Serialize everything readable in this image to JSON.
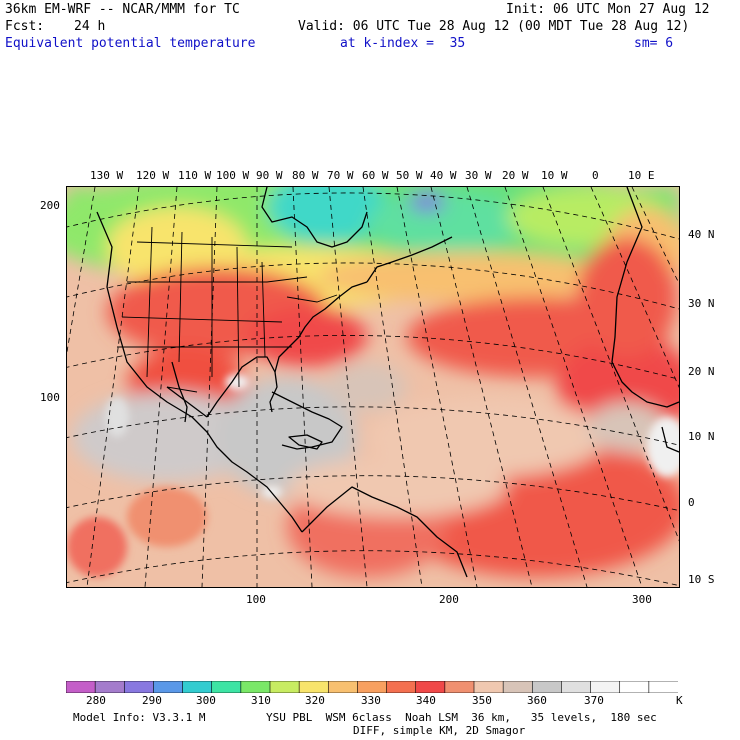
{
  "header": {
    "model": "36km EM-WRF -- NCAR/MMM for TC",
    "init": "Init: 06 UTC Mon 27 Aug 12",
    "fcst_label": "Fcst:",
    "fcst_value": "24 h",
    "valid": "Valid: 06 UTC Tue 28 Aug 12 (00 MDT Tue 28 Aug 12)",
    "field": "Equivalent potential temperature",
    "kindex": "at k-index =  35",
    "smooth": "sm= 6"
  },
  "map": {
    "lon_labels": [
      "130 W",
      "120 W",
      "110 W",
      "100 W",
      "90 W",
      "80 W",
      "70 W",
      "60 W",
      "50 W",
      "40 W",
      "30 W",
      "20 W",
      "10 W",
      "0",
      "10 E"
    ],
    "lat_labels": [
      "40 N",
      "30 N",
      "20 N",
      "10 N",
      "0",
      "10 S"
    ],
    "left_ticks": [
      "200",
      "100"
    ],
    "bottom_ticks": [
      "100",
      "200",
      "300"
    ]
  },
  "colorbar": {
    "colors": [
      "#c45ec8",
      "#a47ccc",
      "#8878e0",
      "#5a98e8",
      "#33ccd0",
      "#3de4a4",
      "#7ae868",
      "#c8ec62",
      "#f8e46c",
      "#f8c070",
      "#f8a060",
      "#f47050",
      "#f04848",
      "#f09070",
      "#f0c8b0",
      "#d8c4b8",
      "#c8c8c8",
      "#e0e0e0",
      "#f4f4f4",
      "#ffffff",
      "#ffffff"
    ],
    "labels": [
      "280",
      "290",
      "300",
      "310",
      "320",
      "330",
      "340",
      "350",
      "360",
      "370",
      "K"
    ]
  },
  "footer": {
    "line1_left": "Model Info: V3.3.1 M",
    "line1_right": "YSU PBL  WSM 6class  Noah LSM  36 km,   35 levels,  180 sec",
    "line2": "DIFF, simple KM, 2D Smagor"
  }
}
